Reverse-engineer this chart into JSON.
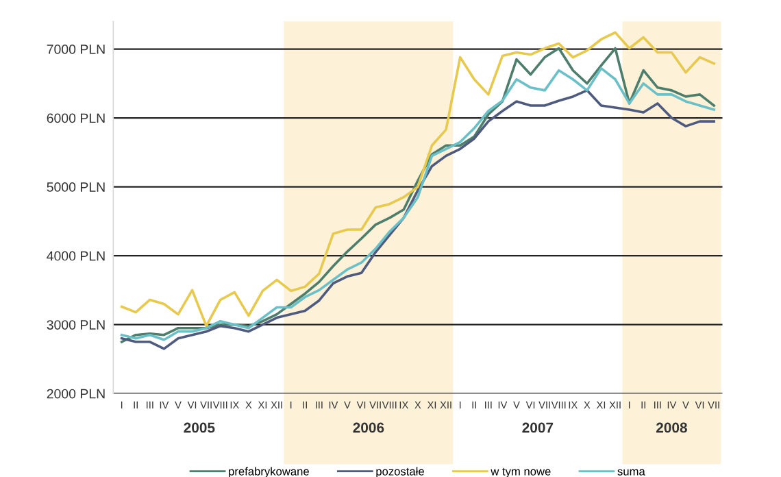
{
  "chart_data": {
    "type": "line",
    "categories": [
      "I",
      "II",
      "III",
      "IV",
      "V",
      "VI",
      "VII",
      "VIII",
      "IX",
      "X",
      "XI",
      "XII",
      "I",
      "II",
      "III",
      "IV",
      "V",
      "VI",
      "VII",
      "VIII",
      "IX",
      "X",
      "XI",
      "XII",
      "I",
      "II",
      "III",
      "IV",
      "V",
      "VI",
      "VII",
      "VIII",
      "IX",
      "X",
      "XI",
      "XII",
      "I",
      "II",
      "III",
      "IV",
      "V",
      "VI",
      "VII"
    ],
    "series": [
      {
        "name": "prefabrykowane",
        "color": "#4d7d6b",
        "values": [
          2750,
          2850,
          2870,
          2850,
          2950,
          2950,
          2950,
          3000,
          3000,
          2980,
          3050,
          3150,
          3300,
          3450,
          3620,
          3850,
          4060,
          4250,
          4450,
          4550,
          4670,
          5090,
          5470,
          5600,
          5600,
          5730,
          6050,
          6240,
          6850,
          6630,
          6880,
          7010,
          6690,
          6500,
          6760,
          7010,
          6210,
          6690,
          6440,
          6400,
          6310,
          6340,
          6180
        ]
      },
      {
        "name": "pozostałe",
        "color": "#4f5b7e",
        "values": [
          2800,
          2750,
          2750,
          2650,
          2800,
          2850,
          2900,
          2980,
          2950,
          2900,
          3000,
          3100,
          3150,
          3200,
          3350,
          3600,
          3700,
          3750,
          4050,
          4300,
          4550,
          4950,
          5300,
          5450,
          5550,
          5700,
          5950,
          6100,
          6240,
          6180,
          6180,
          6250,
          6310,
          6400,
          6180,
          6150,
          6120,
          6080,
          6210,
          6000,
          5880,
          5950,
          5950
        ]
      },
      {
        "name": "w tym nowe",
        "color": "#e6c94e",
        "values": [
          3260,
          3180,
          3360,
          3300,
          3150,
          3500,
          2980,
          3360,
          3470,
          3130,
          3490,
          3650,
          3490,
          3550,
          3740,
          4320,
          4380,
          4380,
          4700,
          4750,
          4850,
          5000,
          5600,
          5830,
          6880,
          6560,
          6340,
          6900,
          6950,
          6920,
          7010,
          7080,
          6880,
          6980,
          7140,
          7240,
          7010,
          7170,
          6950,
          6950,
          6660,
          6880,
          6790
        ]
      },
      {
        "name": "suma",
        "color": "#6bbfc6",
        "values": [
          2850,
          2800,
          2850,
          2780,
          2900,
          2900,
          2950,
          3050,
          3000,
          2950,
          3100,
          3250,
          3250,
          3400,
          3500,
          3650,
          3800,
          3900,
          4100,
          4350,
          4550,
          4850,
          5450,
          5550,
          5650,
          5850,
          6100,
          6250,
          6560,
          6440,
          6400,
          6690,
          6560,
          6400,
          6720,
          6560,
          6210,
          6500,
          6340,
          6340,
          6240,
          6180,
          6120
        ]
      }
    ],
    "ylim": [
      2000,
      7400
    ],
    "yticks": [
      {
        "value": 2000,
        "label": "2000 PLN"
      },
      {
        "value": 3000,
        "label": "3000 PLN"
      },
      {
        "value": 4000,
        "label": "4000 PLN"
      },
      {
        "value": 5000,
        "label": "5000 PLN"
      },
      {
        "value": 6000,
        "label": "6000 PLN"
      },
      {
        "value": 7000,
        "label": "7000 PLN"
      }
    ],
    "annotations": [
      "2005",
      "2006",
      "2007",
      "2008"
    ],
    "grid": "y",
    "legend": "bottom",
    "line_style": "solid"
  }
}
